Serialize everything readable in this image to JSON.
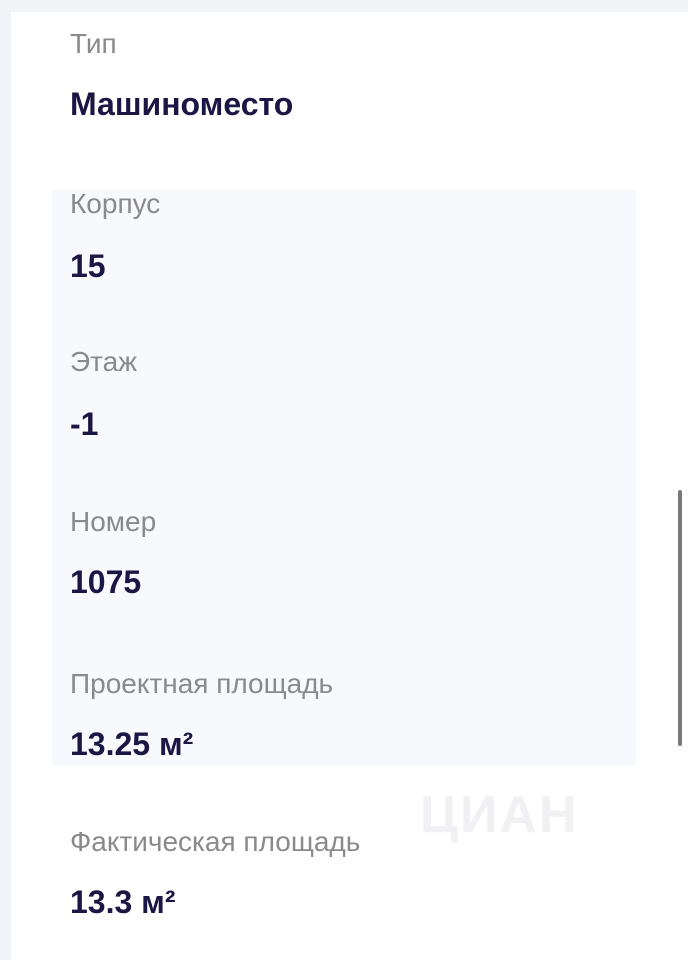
{
  "fields": [
    {
      "label": "Тип",
      "value": "Машиноместо"
    },
    {
      "label": "Корпус",
      "value": "15"
    },
    {
      "label": "Этаж",
      "value": "-1"
    },
    {
      "label": "Номер",
      "value": "1075"
    },
    {
      "label": "Проектная площадь",
      "value": "13.25 м²"
    },
    {
      "label": "Фактическая площадь",
      "value": "13.3 м²"
    }
  ],
  "watermark": "ЦИАН",
  "colors": {
    "label": "#8a8a8e",
    "value": "#1c1645",
    "panel": "#f8f9fd"
  }
}
